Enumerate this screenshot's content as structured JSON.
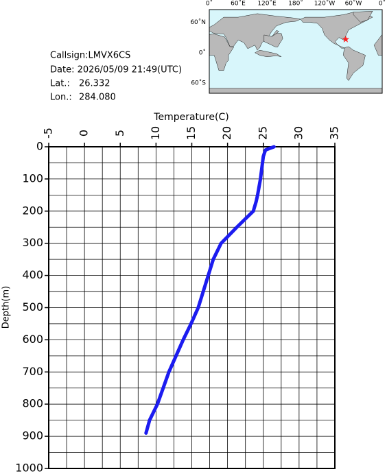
{
  "chart_data": {
    "type": "line",
    "ylabel": "Temperature(C)",
    "xlabel": "Depth(m)",
    "x": [
      0,
      10,
      30,
      100,
      150,
      170,
      200,
      226,
      250,
      300,
      350,
      400,
      450,
      500,
      550,
      600,
      650,
      700,
      750,
      800,
      850,
      890
    ],
    "series": [
      {
        "name": "Temperature",
        "color": "#1c1cf0",
        "values": [
          26.5,
          25.3,
          25.0,
          24.6,
          24.2,
          24.0,
          23.6,
          22.4,
          21.3,
          19.1,
          18.0,
          17.3,
          16.6,
          15.9,
          14.9,
          13.8,
          12.8,
          11.8,
          11.0,
          10.2,
          9.1,
          8.6
        ]
      }
    ],
    "xlim": [
      0,
      1000
    ],
    "xticks": [
      0,
      100,
      200,
      300,
      400,
      500,
      600,
      700,
      800,
      900,
      1000
    ],
    "ylim": [
      -5,
      35
    ],
    "yticks": [
      -5,
      0,
      5,
      10,
      15,
      20,
      25,
      30,
      35
    ],
    "grid": true,
    "info": {
      "callsign": "Callsign:LMVX6CS",
      "date": "Date:  2026/05/09 21:49(UTC)",
      "lat_label": "Lat.:",
      "lat": 26.332,
      "lon_label": "Lon.:",
      "lon": {
        "value": 284.08,
        "label": "284.080"
      }
    },
    "map": {
      "lonticks": [
        {
          "value": 0,
          "label": "0˚"
        },
        {
          "value": 60,
          "label": "60˚E"
        },
        {
          "value": 120,
          "label": "120˚E"
        },
        {
          "value": 180,
          "label": "180˚"
        },
        {
          "value": 240,
          "label": "120˚W"
        },
        {
          "value": 300,
          "label": "60˚W"
        },
        {
          "value": 360,
          "label": "0˚"
        }
      ],
      "latticks": [
        {
          "value": 60,
          "label": "60˚N"
        },
        {
          "value": 0,
          "label": "0˚"
        },
        {
          "value": -60,
          "label": "60˚S"
        }
      ]
    }
  }
}
